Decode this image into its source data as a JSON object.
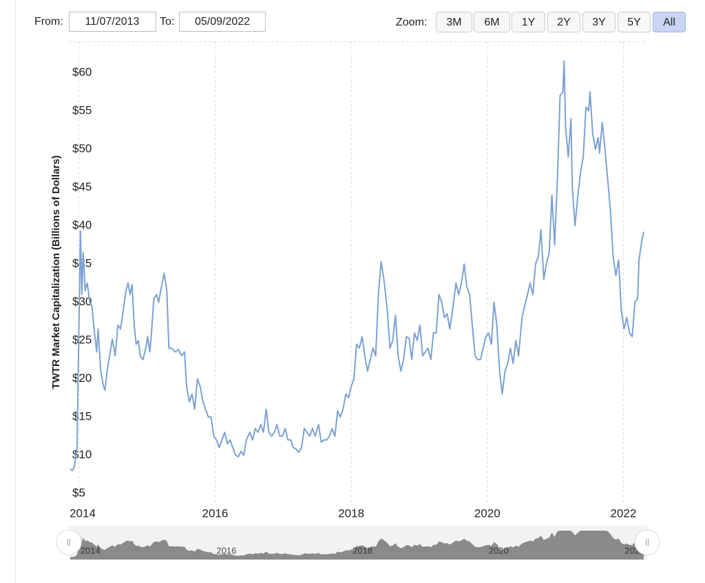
{
  "controls": {
    "from_label": "From:",
    "from_value": "11/07/2013",
    "to_label": "To:",
    "to_value": "05/09/2022",
    "zoom_label": "Zoom:",
    "zoom_buttons": [
      "3M",
      "6M",
      "1Y",
      "2Y",
      "3Y",
      "5Y",
      "All"
    ],
    "active_zoom": 6
  },
  "chart_data": {
    "type": "line",
    "y_label": "TWTR Market Capitalization (Billions of Dollars)",
    "xlim": [
      2013.85,
      2022.35
    ],
    "xticks": [
      2014,
      2016,
      2018,
      2020,
      2022
    ],
    "ylim": [
      4.2,
      64.1
    ],
    "yticks": [
      {
        "value": 5,
        "label": "$5"
      },
      {
        "value": 10,
        "label": "$10"
      },
      {
        "value": 15,
        "label": "$15"
      },
      {
        "value": 20,
        "label": "$20"
      },
      {
        "value": 25,
        "label": "$25"
      },
      {
        "value": 30,
        "label": "$30"
      },
      {
        "value": 35,
        "label": "$35"
      },
      {
        "value": 40,
        "label": "$40"
      },
      {
        "value": 45,
        "label": "$45"
      },
      {
        "value": 50,
        "label": "$50"
      },
      {
        "value": 55,
        "label": "$55"
      },
      {
        "value": 60,
        "label": "$60"
      }
    ],
    "grid": "x",
    "navigator": true,
    "series": [
      {
        "name": "TWTR",
        "color": "#7ba1d3",
        "x": [
          2013.87,
          2013.9,
          2013.93,
          2013.97,
          2014.02,
          2014.04,
          2014.06,
          2014.09,
          2014.12,
          2014.16,
          2014.19,
          2014.22,
          2014.26,
          2014.28,
          2014.32,
          2014.36,
          2014.38,
          2014.42,
          2014.45,
          2014.49,
          2014.53,
          2014.57,
          2014.61,
          2014.65,
          2014.69,
          2014.72,
          2014.75,
          2014.78,
          2014.81,
          2014.84,
          2014.87,
          2014.9,
          2014.94,
          2014.98,
          2015.01,
          2015.04,
          2015.06,
          2015.1,
          2015.14,
          2015.17,
          2015.21,
          2015.25,
          2015.29,
          2015.32,
          2015.36,
          2015.41,
          2015.46,
          2015.51,
          2015.55,
          2015.58,
          2015.62,
          2015.66,
          2015.7,
          2015.74,
          2015.78,
          2015.82,
          2015.86,
          2015.9,
          2015.94,
          2015.98,
          2016.02,
          2016.06,
          2016.1,
          2016.14,
          2016.18,
          2016.22,
          2016.26,
          2016.3,
          2016.34,
          2016.38,
          2016.42,
          2016.46,
          2016.51,
          2016.55,
          2016.59,
          2016.63,
          2016.67,
          2016.71,
          2016.75,
          2016.79,
          2016.83,
          2016.87,
          2016.91,
          2016.95,
          2016.99,
          2017.03,
          2017.07,
          2017.11,
          2017.15,
          2017.19,
          2017.23,
          2017.27,
          2017.31,
          2017.35,
          2017.39,
          2017.43,
          2017.47,
          2017.52,
          2017.56,
          2017.6,
          2017.64,
          2017.68,
          2017.72,
          2017.76,
          2017.8,
          2017.84,
          2017.88,
          2017.92,
          2017.96,
          2018.0,
          2018.04,
          2018.08,
          2018.12,
          2018.16,
          2018.2,
          2018.24,
          2018.28,
          2018.32,
          2018.36,
          2018.4,
          2018.44,
          2018.48,
          2018.53,
          2018.57,
          2018.61,
          2018.65,
          2018.69,
          2018.73,
          2018.77,
          2018.81,
          2018.85,
          2018.89,
          2018.93,
          2018.97,
          2019.01,
          2019.05,
          2019.09,
          2019.13,
          2019.17,
          2019.21,
          2019.25,
          2019.29,
          2019.33,
          2019.37,
          2019.41,
          2019.45,
          2019.49,
          2019.54,
          2019.58,
          2019.62,
          2019.66,
          2019.7,
          2019.74,
          2019.78,
          2019.82,
          2019.86,
          2019.9,
          2019.94,
          2019.98,
          2020.02,
          2020.06,
          2020.1,
          2020.14,
          2020.18,
          2020.22,
          2020.26,
          2020.3,
          2020.34,
          2020.38,
          2020.42,
          2020.46,
          2020.51,
          2020.55,
          2020.59,
          2020.63,
          2020.67,
          2020.71,
          2020.75,
          2020.79,
          2020.83,
          2020.87,
          2020.91,
          2020.95,
          2020.99,
          2021.03,
          2021.07,
          2021.11,
          2021.13,
          2021.15,
          2021.19,
          2021.23,
          2021.25,
          2021.29,
          2021.33,
          2021.37,
          2021.41,
          2021.45,
          2021.49,
          2021.51,
          2021.55,
          2021.59,
          2021.63,
          2021.65,
          2021.69,
          2021.73,
          2021.77,
          2021.81,
          2021.85,
          2021.89,
          2021.93,
          2021.97,
          2022.01,
          2022.05,
          2022.09,
          2022.13,
          2022.17,
          2022.21,
          2022.23,
          2022.27,
          2022.3
        ],
        "values": [
          8.2,
          8.0,
          8.5,
          11,
          39.3,
          31,
          36.5,
          31.5,
          32.5,
          30,
          29.5,
          26.5,
          23.5,
          26.5,
          21,
          19,
          18.5,
          21.5,
          23,
          25.2,
          23,
          27,
          26.5,
          29,
          31.5,
          32.5,
          31,
          32.3,
          27,
          24.5,
          25,
          23,
          22.5,
          24,
          25.5,
          23.5,
          25.5,
          30.5,
          31,
          30,
          32,
          33.8,
          31.5,
          24,
          24,
          23.5,
          23.8,
          23,
          23.5,
          19,
          17,
          18,
          16,
          20,
          19,
          17,
          16,
          15,
          15,
          12.5,
          12,
          11,
          12,
          13,
          11.5,
          12,
          11,
          10,
          9.8,
          10.5,
          10,
          12,
          13,
          12,
          13.5,
          13,
          14,
          13,
          16,
          13,
          12.5,
          13,
          14,
          12.5,
          12.5,
          13.5,
          12,
          12,
          11,
          10.8,
          10.4,
          11,
          13.5,
          13,
          12.5,
          13.5,
          12.5,
          14,
          11.7,
          12,
          12,
          12.5,
          13.5,
          12.5,
          15.8,
          15,
          16,
          18,
          17.5,
          19,
          20,
          24.5,
          24,
          25.5,
          23,
          21,
          22.5,
          24,
          23,
          31,
          35.3,
          33,
          29,
          24,
          25,
          28.3,
          23,
          21,
          22.5,
          25.5,
          25.3,
          22.5,
          26,
          25,
          27,
          23,
          23.5,
          24,
          22.5,
          26,
          26,
          31,
          30,
          28,
          28.5,
          26.5,
          29,
          32.5,
          31,
          32.5,
          35,
          32,
          31,
          27,
          23,
          22.5,
          22.5,
          24,
          25.5,
          26,
          24.5,
          30,
          27,
          21,
          18,
          21,
          22,
          24,
          22,
          25,
          23,
          28,
          29.5,
          31,
          32.5,
          31,
          35,
          36,
          39.5,
          33,
          35,
          36.5,
          44,
          37.5,
          46,
          57,
          57.5,
          61.5,
          53,
          49,
          54,
          45,
          40,
          43.8,
          47,
          49,
          55.5,
          55,
          57.5,
          52,
          50,
          51.5,
          49.5,
          53.5,
          50,
          46,
          42,
          36,
          33.5,
          35.5,
          29,
          26.5,
          28,
          26,
          25.5,
          30,
          30.5,
          35.5,
          38,
          39.2
        ]
      }
    ]
  }
}
